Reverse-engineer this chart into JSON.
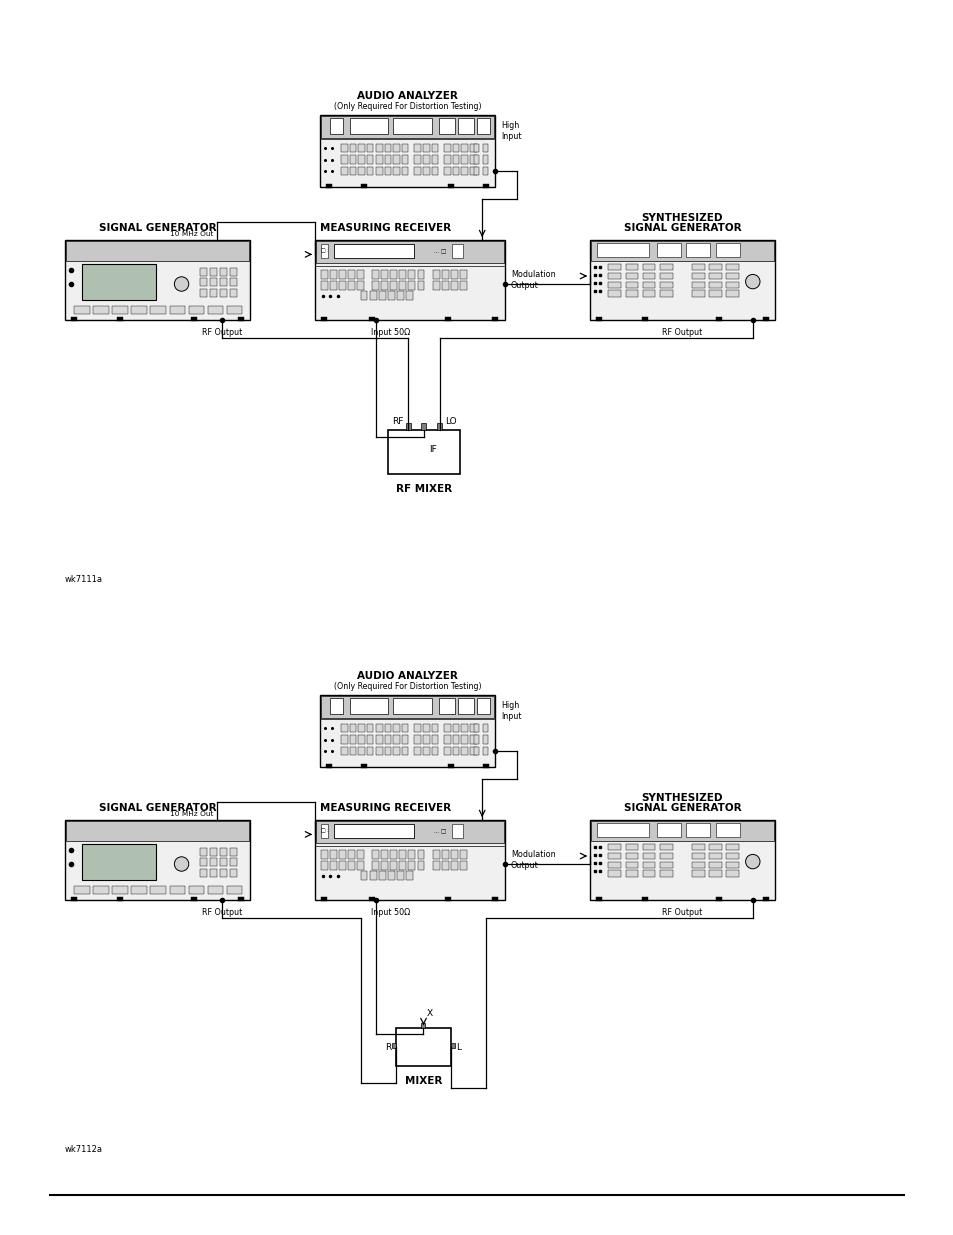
{
  "bg_color": "#ffffff",
  "d1_label": "wk7111a",
  "d2_label": "wk7112a",
  "aa_label": "AUDIO ANALYZER",
  "aa_sublabel": "(Only Required For Distortion Testing)",
  "mr_label": "MEASURING RECEIVER",
  "sg_label": "SIGNAL GENERATOR",
  "ssg_label1": "SYNTHESIZED",
  "ssg_label2": "SIGNAL GENERATOR",
  "rfm_label": "RF MIXER",
  "mx_label": "MIXER",
  "rf_out": "RF Output",
  "in50": "Input 50Ω",
  "high_in": "High\nInput",
  "mod_out": "Modulation\nOutput",
  "mhz_out": "10 MHz Out",
  "if_lbl": "IF",
  "rf_lbl": "RF",
  "lo_lbl": "LO",
  "r_lbl": "R",
  "x_lbl": "X",
  "l_lbl": "L"
}
